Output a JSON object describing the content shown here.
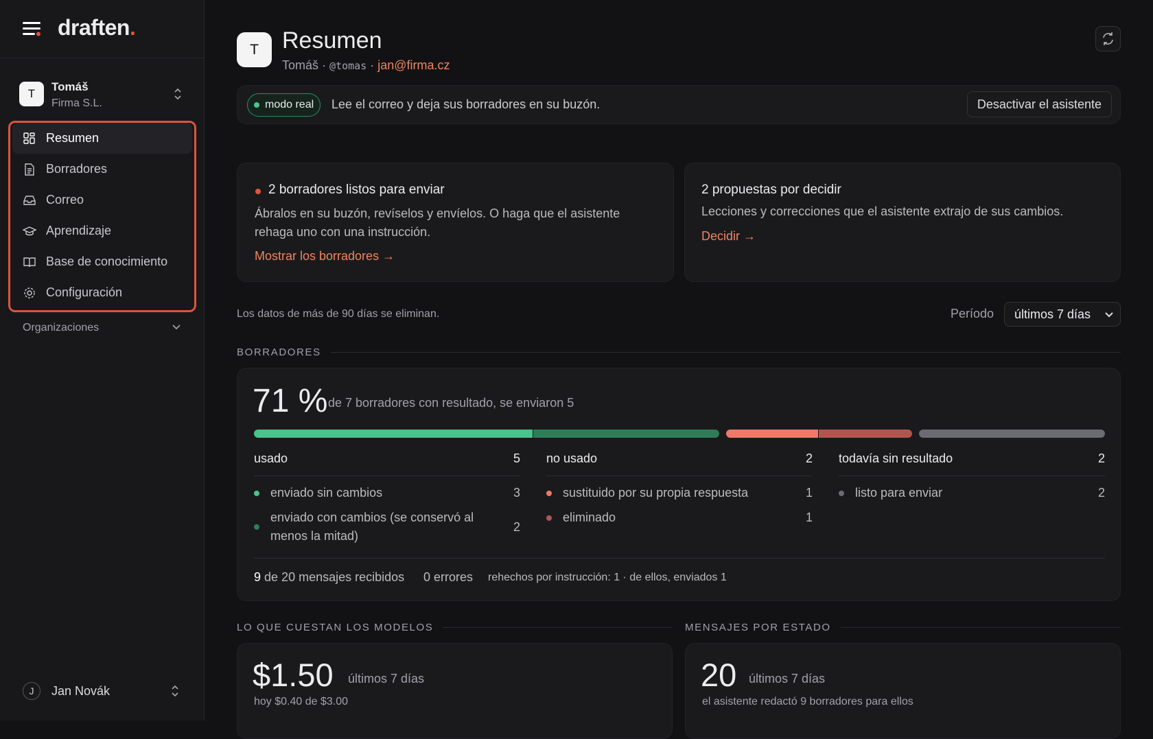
{
  "sidebar": {
    "brand": "draften",
    "brand_dot": ".",
    "account": {
      "initial": "T",
      "name": "Tomáš",
      "org": "Firma S.L."
    },
    "nav": [
      "Resumen",
      "Borradores",
      "Correo",
      "Aprendizaje",
      "Base de conocimiento",
      "Configuración"
    ],
    "organizations": "Organizaciones",
    "user": {
      "initial": "J",
      "name": "Jan Novák"
    }
  },
  "header": {
    "initial": "T",
    "title": "Resumen",
    "name": "Tomáš",
    "separator": "·",
    "handle": "@tomas",
    "email": "jan@firma.cz"
  },
  "banner": {
    "badge": "modo real",
    "text": "Lee el correo y deja sus borradores en su buzón.",
    "button": "Desactivar el asistente"
  },
  "cards": [
    {
      "title": "2 borradores listos para enviar",
      "body": "Ábralos en su buzón, revíselos y envíelos. O haga que el asistente rehaga uno con una instrucción.",
      "link": "Mostrar los borradores →"
    },
    {
      "title": "2 propuestas por decidir",
      "body": "Lecciones y correcciones que el asistente extrajo de sus cambios.",
      "link": "Decidir →"
    }
  ],
  "retention_note": "Los datos de más de 90 días se eliminan.",
  "period_label": "Período",
  "period_value": "últimos 7 días",
  "borradores": {
    "section": "BORRADORES",
    "rate": "71 %",
    "description": "de 7 borradores con resultado, se enviaron 5",
    "groups": [
      {
        "name": "usado",
        "count": 5,
        "items": [
          {
            "label": "enviado sin cambios",
            "count": 3,
            "color": "#4cc38a"
          },
          {
            "label": "enviado con cambios (se conservó al menos la mitad)",
            "count": 2,
            "color": "#2f7d58"
          }
        ]
      },
      {
        "name": "no usado",
        "count": 2,
        "items": [
          {
            "label": "sustituido por su propia respuesta",
            "count": 1,
            "color": "#f07a6a"
          },
          {
            "label": "eliminado",
            "count": 1,
            "color": "#b0564f"
          }
        ]
      },
      {
        "name": "todavía sin resultado",
        "count": 2,
        "items": [
          {
            "label": "listo para enviar",
            "count": 2,
            "color": "#6b6b73"
          }
        ]
      }
    ],
    "received_count": "9",
    "received_text": "de 20 mensajes recibidos",
    "errors": "0 errores",
    "redone": "rehechos por instrucción: 1 · de ellos, enviados 1"
  },
  "costs": {
    "section": "LO QUE CUESTAN LOS MODELOS",
    "amount": "$1.50",
    "period": "últimos 7 días",
    "detail": "hoy $0.40 de $3.00"
  },
  "messages": {
    "section": "MENSAJES POR ESTADO",
    "amount": "20",
    "period": "últimos 7 días",
    "detail": "el asistente redactó 9 borradores para ellos"
  }
}
